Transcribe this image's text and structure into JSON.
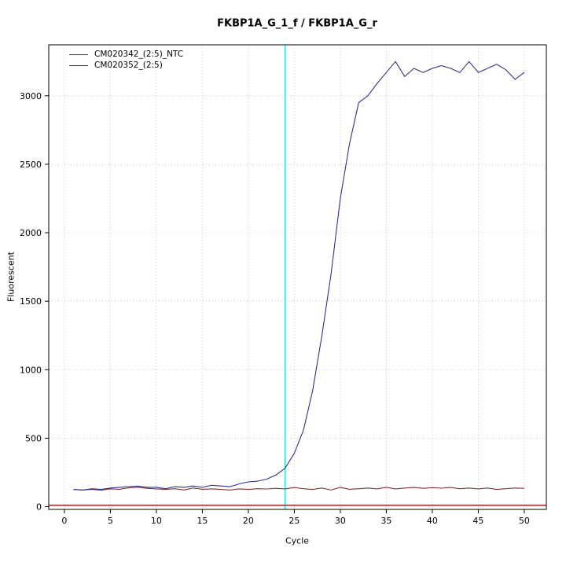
{
  "chart_data": {
    "type": "line",
    "title": "FKBP1A_G_1_f / FKBP1A_G_r",
    "xlabel": "Cycle",
    "ylabel": "Fluorescent",
    "xlim": [
      -1.7,
      52.4
    ],
    "ylim": [
      -20,
      3372
    ],
    "x_ticks": [
      0,
      5,
      10,
      15,
      20,
      25,
      30,
      35,
      40,
      45,
      50
    ],
    "y_ticks": [
      0,
      500,
      1000,
      1500,
      2000,
      2500,
      3000
    ],
    "grid": true,
    "grid_color": "#c8c8c8",
    "legend_position": "top-left",
    "x": [
      1,
      2,
      3,
      4,
      5,
      6,
      7,
      8,
      9,
      10,
      11,
      12,
      13,
      14,
      15,
      16,
      17,
      18,
      19,
      20,
      21,
      22,
      23,
      24,
      25,
      26,
      27,
      28,
      29,
      30,
      31,
      32,
      33,
      34,
      35,
      36,
      37,
      38,
      39,
      40,
      41,
      42,
      43,
      44,
      45,
      46,
      47,
      48,
      49,
      50
    ],
    "series": [
      {
        "name": "CM020342_(2:5)_NTC",
        "color": "#8b3030",
        "values": [
          125,
          122,
          126,
          120,
          130,
          127,
          138,
          142,
          134,
          130,
          126,
          131,
          122,
          136,
          127,
          130,
          126,
          121,
          130,
          126,
          131,
          129,
          134,
          130,
          140,
          131,
          126,
          136,
          121,
          141,
          127,
          131,
          136,
          130,
          141,
          130,
          136,
          140,
          134,
          139,
          135,
          140,
          131,
          136,
          130,
          136,
          126,
          131,
          136,
          134
        ]
      },
      {
        "name": "CM020352_(2:5)",
        "color": "#30308f",
        "values": [
          126,
          121,
          131,
          126,
          136,
          141,
          146,
          150,
          141,
          141,
          131,
          146,
          141,
          151,
          141,
          156,
          151,
          146,
          166,
          181,
          186,
          201,
          231,
          281,
          390,
          560,
          850,
          1250,
          1700,
          2250,
          2650,
          2950,
          3000,
          3090,
          3170,
          3250,
          3140,
          3200,
          3170,
          3200,
          3220,
          3200,
          3170,
          3250,
          3170,
          3200,
          3230,
          3190,
          3120,
          3170
        ]
      }
    ],
    "annotations": {
      "threshold_line": {
        "y": 10,
        "color": "#7a0000"
      },
      "ct_line": {
        "x": 24,
        "color": "#00e0e0"
      }
    }
  },
  "colors": {
    "background": "#ffffff",
    "axis": "#000000",
    "grid": "#c8c8c8"
  }
}
